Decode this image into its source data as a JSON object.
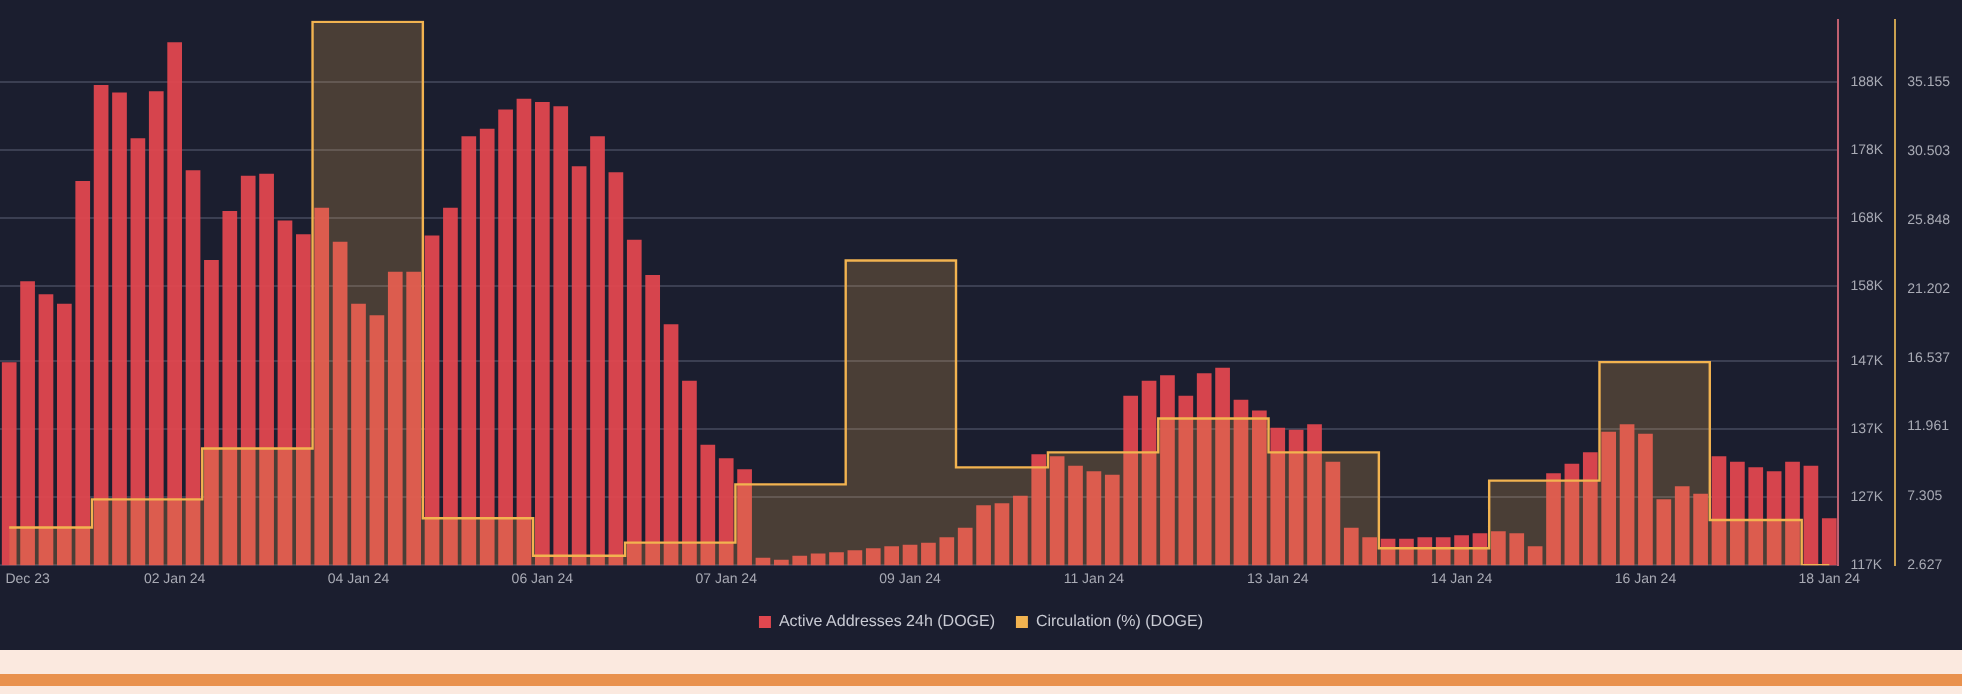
{
  "chart_data": {
    "type": "bar",
    "categories": [
      null,
      "Dec 23",
      null,
      null,
      null,
      null,
      null,
      null,
      null,
      "02 Jan 24",
      null,
      null,
      null,
      null,
      null,
      null,
      null,
      null,
      null,
      "04 Jan 24",
      null,
      null,
      null,
      null,
      null,
      null,
      null,
      null,
      null,
      "06 Jan 24",
      null,
      null,
      null,
      null,
      null,
      null,
      null,
      null,
      null,
      "07 Jan 24",
      null,
      null,
      null,
      null,
      null,
      null,
      null,
      null,
      null,
      "09 Jan 24",
      null,
      null,
      null,
      null,
      null,
      null,
      null,
      null,
      null,
      "11 Jan 24",
      null,
      null,
      null,
      null,
      null,
      null,
      null,
      null,
      null,
      "13 Jan 24",
      null,
      null,
      null,
      null,
      null,
      null,
      null,
      null,
      null,
      "14 Jan 24",
      null,
      null,
      null,
      null,
      null,
      null,
      null,
      null,
      null,
      "16 Jan 24",
      null,
      null,
      null,
      null,
      null,
      null,
      null,
      null,
      null,
      "18 Jan 24"
    ],
    "series": [
      {
        "name": "Active Addresses 24h (DOGE)",
        "color": "#e0474f",
        "values": [
          146.8,
          158.7,
          156.8,
          155.4,
          173.4,
          187.5,
          186.4,
          179.7,
          186.6,
          193.8,
          175.0,
          161.8,
          169.0,
          174.2,
          174.5,
          167.6,
          165.6,
          169.5,
          164.5,
          155.4,
          153.7,
          160.1,
          160.1,
          165.4,
          169.5,
          180.0,
          181.1,
          183.9,
          185.5,
          185.0,
          184.4,
          175.6,
          180.0,
          174.7,
          164.8,
          159.6,
          152.4,
          144.1,
          134.7,
          132.7,
          131.1,
          118.1,
          117.8,
          118.4,
          118.7,
          118.9,
          119.2,
          119.5,
          119.8,
          120.0,
          120.3,
          121.1,
          122.5,
          125.8,
          126.1,
          127.2,
          133.3,
          133.0,
          131.6,
          130.8,
          130.3,
          141.9,
          144.1,
          144.9,
          141.9,
          145.2,
          146.0,
          141.3,
          139.7,
          137.2,
          136.9,
          137.7,
          132.2,
          122.5,
          121.1,
          120.9,
          120.9,
          121.1,
          121.1,
          121.4,
          121.7,
          122.0,
          121.7,
          119.8,
          130.5,
          131.9,
          133.6,
          136.6,
          137.7,
          136.3,
          126.7,
          128.6,
          127.5,
          133.0,
          132.2,
          131.4,
          130.8,
          132.2,
          131.6,
          123.9
        ]
      },
      {
        "name": "Circulation (%) (DOGE)",
        "type": "step",
        "axis": "y2",
        "color": "#f2b350",
        "values": [
          5.16,
          5.16,
          5.16,
          5.16,
          5.16,
          7.06,
          7.06,
          7.06,
          7.06,
          7.06,
          7.06,
          10.48,
          10.48,
          10.48,
          10.48,
          10.48,
          10.48,
          39.2,
          39.2,
          39.2,
          39.2,
          39.2,
          39.2,
          5.79,
          5.79,
          5.79,
          5.79,
          5.79,
          5.79,
          3.26,
          3.26,
          3.26,
          3.26,
          3.26,
          4.15,
          4.15,
          4.15,
          4.15,
          4.15,
          4.15,
          8.07,
          8.07,
          8.07,
          8.07,
          8.07,
          8.07,
          23.14,
          23.14,
          23.14,
          23.14,
          23.14,
          23.14,
          9.21,
          9.21,
          9.21,
          9.21,
          9.21,
          10.22,
          10.22,
          10.22,
          10.22,
          10.22,
          10.22,
          12.5,
          12.5,
          12.5,
          12.5,
          12.5,
          12.5,
          10.22,
          10.22,
          10.22,
          10.22,
          10.22,
          10.22,
          3.77,
          3.77,
          3.77,
          3.77,
          3.77,
          3.77,
          8.32,
          8.32,
          8.32,
          8.32,
          8.32,
          8.32,
          16.3,
          16.3,
          16.3,
          16.3,
          16.3,
          16.3,
          5.67,
          5.67,
          5.67,
          5.67,
          5.67,
          2.627,
          2.627
        ]
      }
    ],
    "ylim": [
      117,
      197
    ],
    "yticks": [
      {
        "value": 117,
        "label": "117K"
      },
      {
        "value": 127,
        "label": "127K"
      },
      {
        "value": 137,
        "label": "137K"
      },
      {
        "value": 147,
        "label": "147K"
      },
      {
        "value": 158,
        "label": "158K"
      },
      {
        "value": 168,
        "label": "168K"
      },
      {
        "value": 178,
        "label": "178K"
      },
      {
        "value": 188,
        "label": "188K"
      }
    ],
    "y2lim": [
      2.627,
      39.3
    ],
    "y2ticks": [
      2.627,
      7.305,
      11.961,
      16.537,
      21.202,
      25.848,
      30.503,
      35.155
    ],
    "grid": "y",
    "legend": "bottom",
    "marker": "none"
  }
}
